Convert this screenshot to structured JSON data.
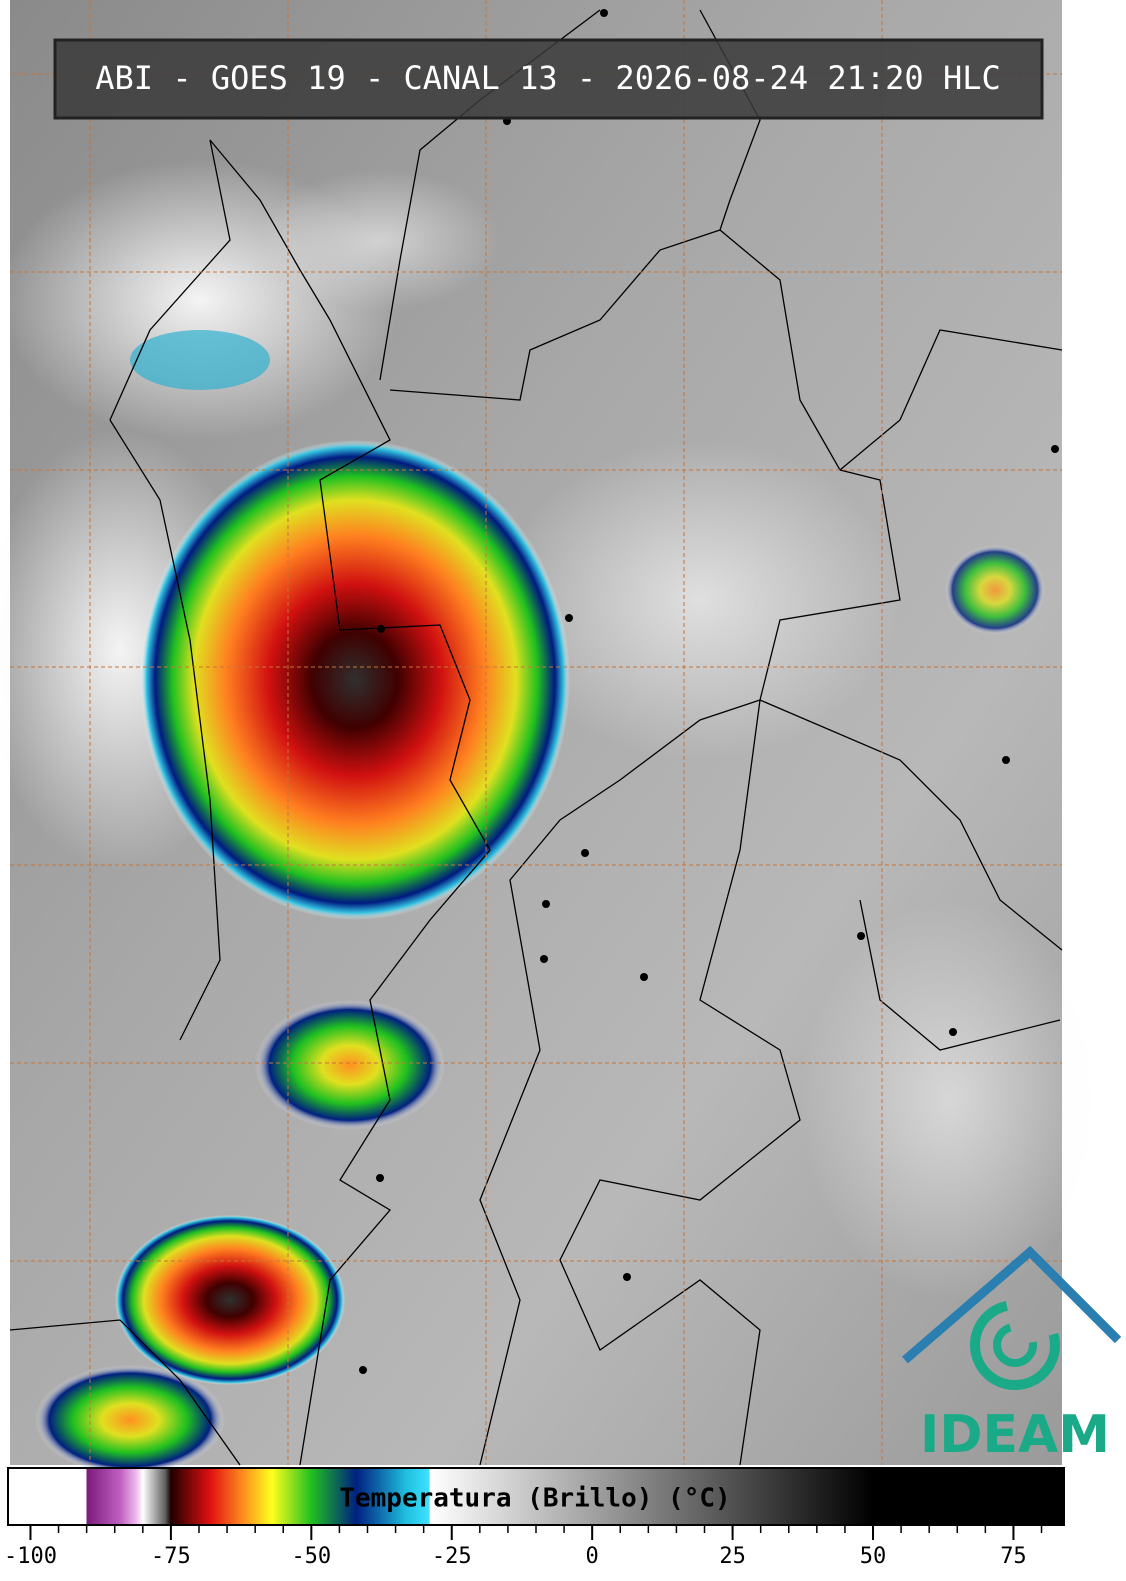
{
  "header": {
    "title": "ABI - GOES 19 - CANAL 13 - 2026-08-24 21:20 HLC"
  },
  "colorbar": {
    "label": "Temperatura (Brillo) (°C)",
    "xlim": [
      -104,
      84
    ],
    "xticks": [
      -100,
      -75,
      -50,
      -25,
      0,
      25,
      50,
      75
    ],
    "minor_tick_step": 5,
    "color_stops": [
      {
        "value": -104,
        "color": "#ffffff"
      },
      {
        "value": -90,
        "color": "#ffffff"
      },
      {
        "value": -90,
        "color": "#7a1a7a"
      },
      {
        "value": -84,
        "color": "#c060c0"
      },
      {
        "value": -81,
        "color": "#f0c0f0"
      },
      {
        "value": -80,
        "color": "#ffffff"
      },
      {
        "value": -76,
        "color": "#606060"
      },
      {
        "value": -75,
        "color": "#200000"
      },
      {
        "value": -68,
        "color": "#e01010"
      },
      {
        "value": -62,
        "color": "#ff9020"
      },
      {
        "value": -57,
        "color": "#ffff20"
      },
      {
        "value": -50,
        "color": "#20c020"
      },
      {
        "value": -42,
        "color": "#002080"
      },
      {
        "value": -33,
        "color": "#20c0e0"
      },
      {
        "value": -29,
        "color": "#40e0ff"
      },
      {
        "value": -28.9,
        "color": "#ffffff"
      },
      {
        "value": 50,
        "color": "#000000"
      },
      {
        "value": 84,
        "color": "#000000"
      }
    ]
  },
  "logo": {
    "text": "IDEAM"
  }
}
